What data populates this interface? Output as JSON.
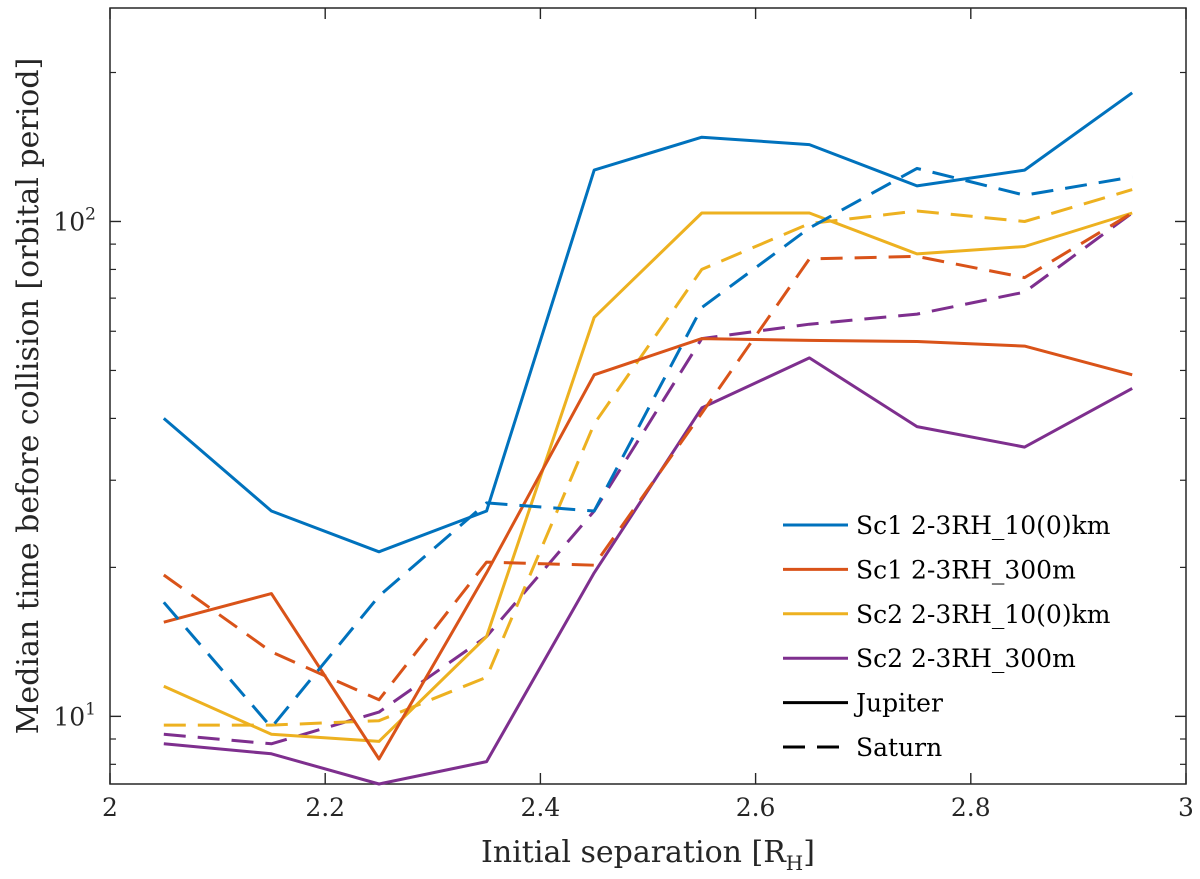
{
  "chart_data": {
    "type": "line",
    "xlabel": "Initial separation [RH]",
    "xlabel_main": "Initial separation [R",
    "xlabel_sub": "H",
    "xlabel_close": "]",
    "ylabel": "Median time before collision [orbital period]",
    "x": [
      2.05,
      2.15,
      2.25,
      2.35,
      2.45,
      2.55,
      2.65,
      2.75,
      2.85,
      2.95
    ],
    "xlim": [
      2,
      3
    ],
    "ylim": [
      7.3,
      270
    ],
    "yscale": "log",
    "xticks": [
      {
        "value": 2,
        "label": "2"
      },
      {
        "value": 2.2,
        "label": "2.2"
      },
      {
        "value": 2.4,
        "label": "2.4"
      },
      {
        "value": 2.6,
        "label": "2.6"
      },
      {
        "value": 2.8,
        "label": "2.8"
      },
      {
        "value": 3,
        "label": "3"
      }
    ],
    "yticks": [
      {
        "value": 10,
        "base": "10",
        "exp": "1"
      },
      {
        "value": 100,
        "base": "10",
        "exp": "2"
      }
    ],
    "series": [
      {
        "name": "Sc1 2-3RH_10(0)km Jupiter",
        "color": "#0072BD",
        "dash": "solid",
        "values": [
          40,
          26,
          21.5,
          26,
          127,
          148,
          143,
          118,
          127,
          182
        ]
      },
      {
        "name": "Sc1 2-3RH_10(0)km Saturn",
        "color": "#0072BD",
        "dash": "dashed",
        "values": [
          17,
          9.5,
          17.5,
          27,
          26,
          67,
          97,
          128,
          113,
          123
        ]
      },
      {
        "name": "Sc1 2-3RH_300m Jupiter",
        "color": "#D95319",
        "dash": "solid",
        "values": [
          15.5,
          17.7,
          8.2,
          19.5,
          49,
          58,
          57.5,
          57.2,
          56,
          49
        ]
      },
      {
        "name": "Sc1 2-3RH_300m Saturn",
        "color": "#D95319",
        "dash": "dashed",
        "values": [
          19.3,
          13.5,
          10.8,
          20.5,
          20.2,
          41,
          84,
          85,
          77,
          104
        ]
      },
      {
        "name": "Sc2 2-3RH_10(0)km Jupiter",
        "color": "#EDB120",
        "dash": "solid",
        "values": [
          11.5,
          9.2,
          8.9,
          14.5,
          64,
          104,
          104,
          86,
          89,
          104
        ]
      },
      {
        "name": "Sc2 2-3RH_10(0)km Saturn",
        "color": "#EDB120",
        "dash": "dashed",
        "values": [
          9.6,
          9.6,
          9.8,
          12,
          39,
          80,
          99,
          105,
          100,
          116
        ]
      },
      {
        "name": "Sc2 2-3RH_300m Jupiter",
        "color": "#7E2F8E",
        "dash": "solid",
        "values": [
          8.8,
          8.4,
          7.3,
          8.1,
          19.5,
          42,
          53,
          38.5,
          35,
          46
        ]
      },
      {
        "name": "Sc2 2-3RH_300m Saturn",
        "color": "#7E2F8E",
        "dash": "dashed",
        "values": [
          9.2,
          8.8,
          10.2,
          14.5,
          26,
          58,
          62,
          65,
          72,
          104
        ]
      }
    ],
    "legend": {
      "position": "bottom-right",
      "entries": [
        {
          "label": "Sc1 2-3RH_10(0)km",
          "color": "#0072BD",
          "dash": "solid"
        },
        {
          "label": "Sc1 2-3RH_300m",
          "color": "#D95319",
          "dash": "solid"
        },
        {
          "label": "Sc2 2-3RH_10(0)km",
          "color": "#EDB120",
          "dash": "solid"
        },
        {
          "label": "Sc2 2-3RH_300m",
          "color": "#7E2F8E",
          "dash": "solid"
        },
        {
          "label": "Jupiter",
          "color": "#000000",
          "dash": "solid"
        },
        {
          "label": "Saturn",
          "color": "#000000",
          "dash": "dashed"
        }
      ]
    }
  }
}
